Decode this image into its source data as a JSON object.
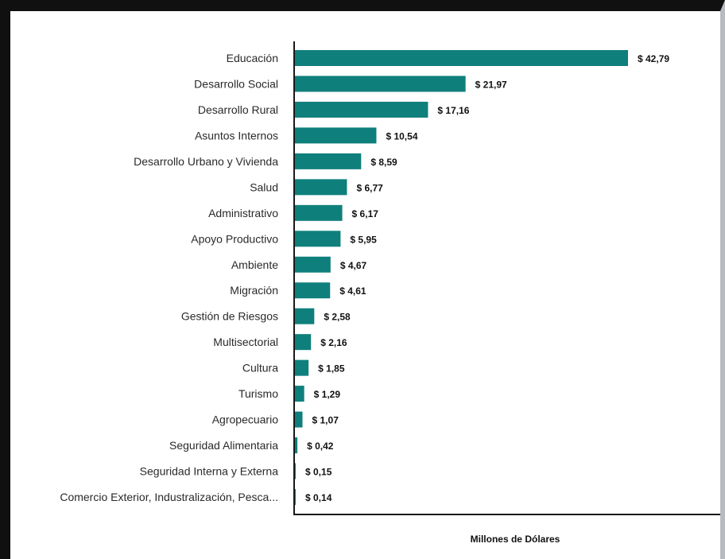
{
  "chart_data": {
    "type": "bar",
    "orientation": "horizontal",
    "categories": [
      "Educación",
      "Desarrollo Social",
      "Desarrollo Rural",
      "Asuntos Internos",
      "Desarrollo Urbano y Vivienda",
      "Salud",
      "Administrativo",
      "Apoyo Productivo",
      "Ambiente",
      "Migración",
      "Gestión de Riesgos",
      "Multisectorial",
      "Cultura",
      "Turismo",
      "Agropecuario",
      "Seguridad Alimentaria",
      "Seguridad Interna y Externa",
      "Comercio Exterior, Industralización, Pesca..."
    ],
    "values": [
      42.79,
      21.97,
      17.16,
      10.54,
      8.59,
      6.77,
      6.17,
      5.95,
      4.67,
      4.61,
      2.58,
      2.16,
      1.85,
      1.29,
      1.07,
      0.42,
      0.15,
      0.14
    ],
    "value_labels": [
      "$ 42,79",
      "$ 21,97",
      "$ 17,16",
      "$ 10,54",
      "$ 8,59",
      "$ 6,77",
      "$ 6,17",
      "$ 5,95",
      "$ 4,67",
      "$ 4,61",
      "$ 2,58",
      "$ 2,16",
      "$ 1,85",
      "$ 1,29",
      "$ 1,07",
      "$ 0,42",
      "$ 0,15",
      "$ 0,14"
    ],
    "xlabel": "Millones de Dólares",
    "ylabel": "",
    "title": "",
    "xlim": [
      0,
      42.79
    ],
    "grid": false,
    "legend": "none",
    "colors": {
      "bar": "#0f7f7c",
      "axis": "#1a1a1a"
    }
  }
}
